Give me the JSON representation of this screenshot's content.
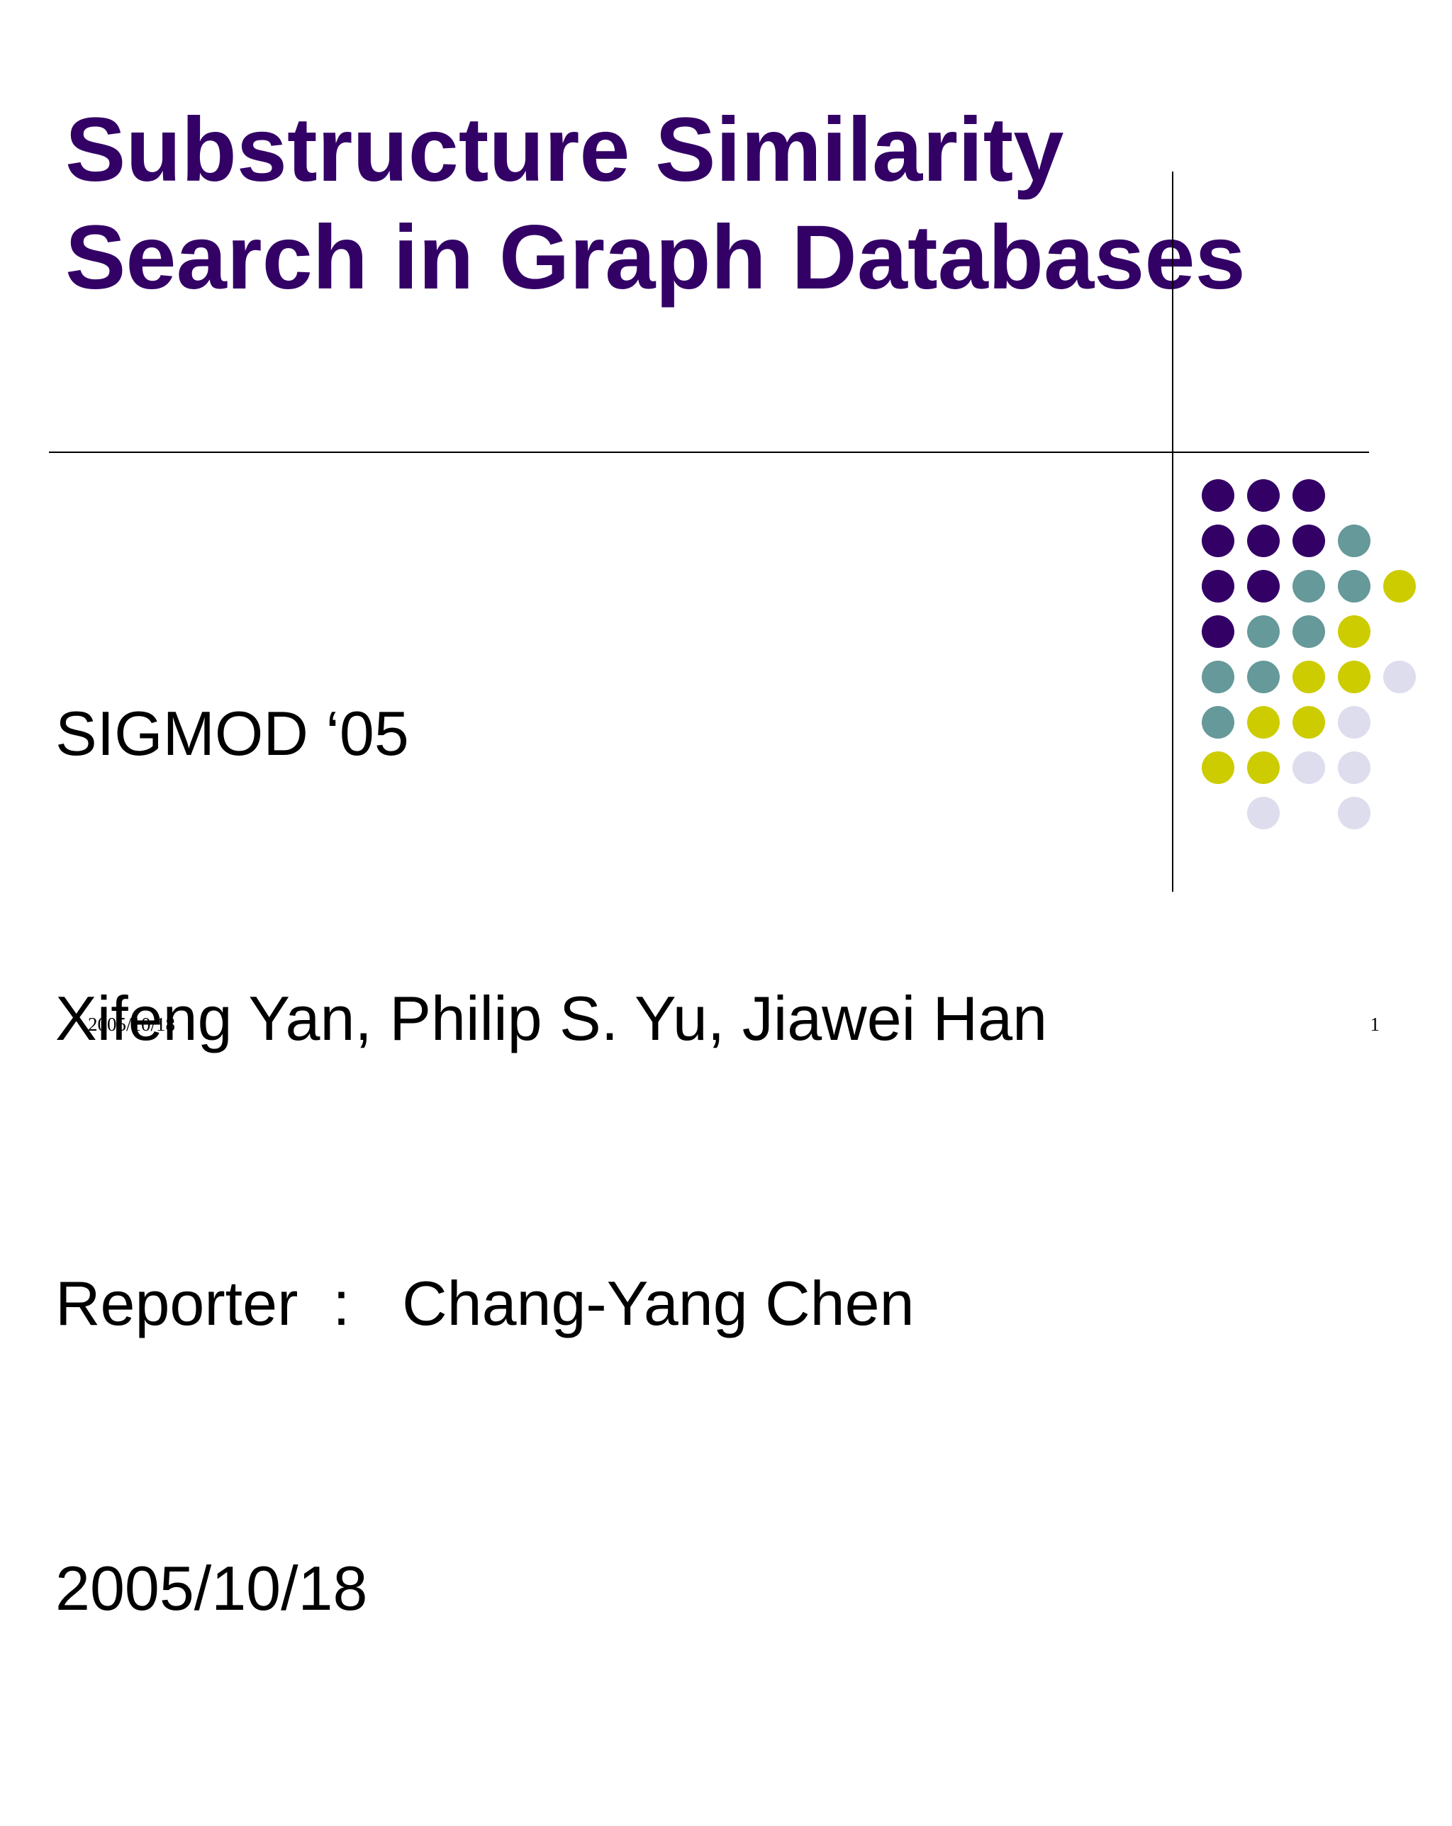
{
  "slide": {
    "title_lines": [
      "Substructure Similarity",
      "Search in Graph Databases"
    ],
    "body_lines": [
      "SIGMOD ‘05",
      "Xifeng Yan, Philip S. Yu, Jiawei Han",
      "Reporter  :   Chang-Yang Chen",
      "2005/10/18"
    ],
    "footer": {
      "date": "2005/10/18",
      "page_number": "1"
    }
  },
  "colors": {
    "title": "#330066",
    "purple": "#330066",
    "teal": "#669999",
    "yellow": "#cccc00",
    "lavender": "#ddddee"
  },
  "decoration": {
    "dot_grid": [
      [
        "purple",
        "purple",
        "purple",
        "",
        ""
      ],
      [
        "purple",
        "purple",
        "purple",
        "teal",
        ""
      ],
      [
        "purple",
        "purple",
        "teal",
        "teal",
        "yellow"
      ],
      [
        "purple",
        "teal",
        "teal",
        "yellow",
        ""
      ],
      [
        "teal",
        "teal",
        "yellow",
        "yellow",
        "lavender"
      ],
      [
        "teal",
        "yellow",
        "yellow",
        "lavender",
        ""
      ],
      [
        "yellow",
        "yellow",
        "lavender",
        "lavender",
        ""
      ],
      [
        "",
        "lavender",
        "",
        "lavender",
        ""
      ]
    ]
  }
}
